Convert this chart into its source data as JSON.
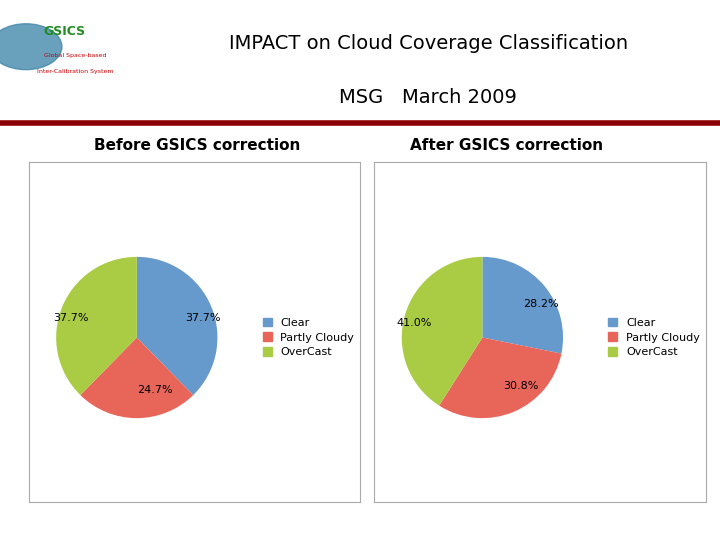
{
  "title_line1": "IMPACT on Cloud Coverage Classification",
  "title_line2": "MSG   March 2009",
  "title_fontsize": 14,
  "separator_color": "#8B0000",
  "bg_color": "#ffffff",
  "left_subtitle": "Before GSICS correction",
  "right_subtitle": "After GSICS correction",
  "subtitle_fontsize": 11,
  "before": {
    "values": [
      37.7,
      24.7,
      37.7
    ],
    "labels": [
      "37.7%",
      "24.7%",
      "37.7%"
    ],
    "colors": [
      "#6699CC",
      "#E8655A",
      "#AACC44"
    ],
    "startangle": 90
  },
  "after": {
    "values": [
      28.2,
      30.8,
      41.0
    ],
    "labels": [
      "28.2%",
      "30.8%",
      "41.0%"
    ],
    "colors": [
      "#6699CC",
      "#E8655A",
      "#AACC44"
    ],
    "startangle": 90
  },
  "legend_labels": [
    "Clear",
    "Partly Cloudy",
    "OverCast"
  ],
  "legend_colors": [
    "#6699CC",
    "#E8655A",
    "#AACC44"
  ],
  "legend_fontsize": 8,
  "pct_fontsize": 8,
  "box_facecolor": "#ffffff",
  "box_edgecolor": "#aaaaaa"
}
